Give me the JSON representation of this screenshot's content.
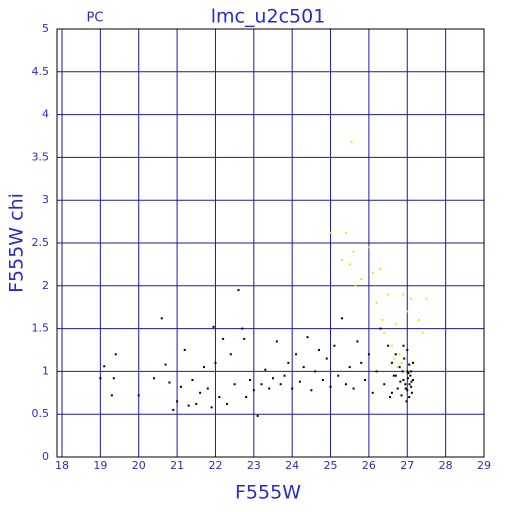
{
  "chart_data": {
    "type": "scatter",
    "title": "lmc_u2c501",
    "subtitle": "PC",
    "x_label": "F555W",
    "y_label": "F555W chi",
    "xlim": [
      18,
      29
    ],
    "ylim": [
      0,
      5
    ],
    "xticks": [
      18,
      19,
      20,
      21,
      22,
      23,
      24,
      25,
      26,
      27,
      28,
      29
    ],
    "yticks": [
      0,
      0.5,
      1,
      1.5,
      2,
      2.5,
      3,
      3.5,
      4,
      4.5,
      5
    ],
    "grid": true,
    "grid_color": "#1a1aa0",
    "series": [
      {
        "color": "#000000",
        "x": [
          19.0,
          19.1,
          19.3,
          19.35,
          19.4,
          20.0,
          20.4,
          20.6,
          20.7,
          20.8,
          20.9,
          21.0,
          21.1,
          21.2,
          21.3,
          21.4,
          21.5,
          21.6,
          21.7,
          21.8,
          21.9,
          21.95,
          22.0,
          22.1,
          22.2,
          22.3,
          22.4,
          22.5,
          22.6,
          22.7,
          22.75,
          22.8,
          22.9,
          23.0,
          23.1,
          23.2,
          23.3,
          23.4,
          23.5,
          23.6,
          23.7,
          23.8,
          23.9,
          24.0,
          24.1,
          24.2,
          24.3,
          24.4,
          24.5,
          24.6,
          24.7,
          24.8,
          24.9,
          25.0,
          25.1,
          25.2,
          25.3,
          25.4,
          25.5,
          25.6,
          25.7,
          25.8,
          25.9,
          26.0,
          26.1,
          26.2,
          26.3,
          26.4,
          26.5,
          26.55,
          26.6,
          26.65,
          26.7,
          26.75,
          26.8,
          26.85,
          26.9,
          26.92,
          26.95,
          27.0,
          27.0,
          27.02,
          27.05,
          27.05,
          27.08,
          27.1,
          27.1,
          27.12,
          27.15,
          27.15,
          26.98,
          27.0,
          26.88,
          26.82,
          27.06,
          27.03,
          26.96,
          27.11,
          26.9,
          26.7,
          26.6
        ],
        "y": [
          0.92,
          1.06,
          0.72,
          0.92,
          1.2,
          0.72,
          0.92,
          1.62,
          1.08,
          0.87,
          0.55,
          0.65,
          0.82,
          1.25,
          0.6,
          0.9,
          0.62,
          0.75,
          1.05,
          0.8,
          0.58,
          1.52,
          1.1,
          0.7,
          1.38,
          0.62,
          1.2,
          0.85,
          1.95,
          1.5,
          1.38,
          0.7,
          0.9,
          0.78,
          0.48,
          0.85,
          1.02,
          0.8,
          0.92,
          1.35,
          0.85,
          0.95,
          1.1,
          0.8,
          1.2,
          0.88,
          1.05,
          1.4,
          0.78,
          1.0,
          1.25,
          0.9,
          1.15,
          0.82,
          1.3,
          0.95,
          1.62,
          0.85,
          1.05,
          0.8,
          1.35,
          1.1,
          0.9,
          1.2,
          0.75,
          1.0,
          1.5,
          0.85,
          1.3,
          0.7,
          1.1,
          0.95,
          1.2,
          0.8,
          1.05,
          0.72,
          0.9,
          1.15,
          0.85,
          1.0,
          0.78,
          0.92,
          1.08,
          0.7,
          0.95,
          0.82,
          1.0,
          0.75,
          0.9,
          1.1,
          0.65,
          1.25,
          1.0,
          0.88,
          0.85,
          0.98,
          0.8,
          0.88,
          1.3,
          0.95,
          0.75
        ]
      },
      {
        "color": "#f0e020",
        "x": [
          25.0,
          25.3,
          25.4,
          25.5,
          25.55,
          25.6,
          25.65,
          25.8,
          26.0,
          26.1,
          26.2,
          26.3,
          26.35,
          26.4,
          26.5,
          26.6,
          26.7,
          26.8,
          26.9,
          27.0,
          27.1,
          27.3,
          27.5,
          27.4,
          26.75,
          26.85,
          26.95,
          26.65
        ],
        "y": [
          2.62,
          2.3,
          2.62,
          2.25,
          3.68,
          2.4,
          2.0,
          2.08,
          2.45,
          2.15,
          1.8,
          2.2,
          1.6,
          1.45,
          1.9,
          1.3,
          1.55,
          1.2,
          1.9,
          1.7,
          1.85,
          1.6,
          1.85,
          1.45,
          1.05,
          1.1,
          1.0,
          1.15
        ]
      }
    ]
  }
}
